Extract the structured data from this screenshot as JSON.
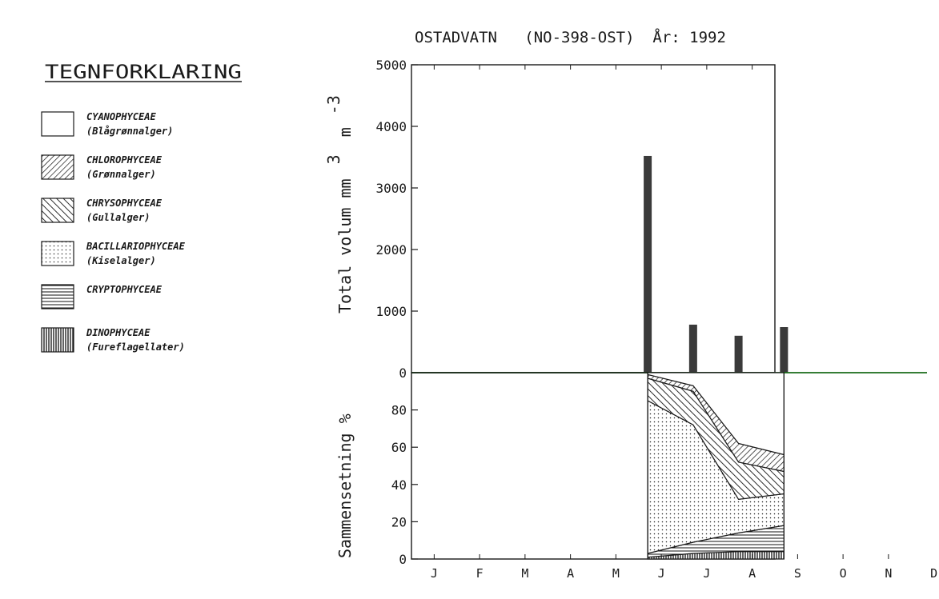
{
  "legend": {
    "heading": "TEGNFORKLARING",
    "items": [
      {
        "line1": "CYANOPHYCEAE",
        "line2": "(Blågrønnalger)",
        "pattern": "cyano"
      },
      {
        "line1": "CHLOROPHYCEAE",
        "line2": "(Grønnalger)",
        "pattern": "chloro"
      },
      {
        "line1": "CHRYSOPHYCEAE",
        "line2": "(Gullalger)",
        "pattern": "chryso"
      },
      {
        "line1": "BACILLARIOPHYCEAE",
        "line2": "(Kiselalger)",
        "pattern": "bacil"
      },
      {
        "line1": "CRYPTOPHYCEAE",
        "line2": "",
        "pattern": "crypto"
      },
      {
        "line1": "DINOPHYCEAE",
        "line2": "(Fureflagellater)",
        "pattern": "dino"
      }
    ]
  },
  "chart_data": {
    "title": "OSTADVATN   (NO-398-OST)  År: 1992",
    "months": [
      "J",
      "F",
      "M",
      "A",
      "M",
      "J",
      "J",
      "A",
      "S",
      "O",
      "N",
      "D"
    ],
    "top": {
      "type": "bar",
      "ylabel": "Total volum mm",
      "ylabel_unit": "3",
      "ylabel_unit2": "m",
      "ylabel_exp": "-3",
      "ylim": [
        0,
        5000
      ],
      "yticks": [
        "0",
        "1000",
        "2000",
        "3000",
        "4000",
        "5000"
      ],
      "yticks_values": [
        0,
        1000,
        2000,
        3000,
        4000,
        5000
      ],
      "bars": [
        {
          "month": 4.7,
          "value": 3520
        },
        {
          "month": 5.7,
          "value": 780
        },
        {
          "month": 6.7,
          "value": 600
        },
        {
          "month": 7.7,
          "value": 740
        }
      ]
    },
    "bottom": {
      "type": "area",
      "ylabel": "Sammensetning %",
      "ylim": [
        0,
        100
      ],
      "yticks": [
        "0",
        "20",
        "40",
        "60",
        "80"
      ],
      "yticks_values": [
        0,
        20,
        40,
        60,
        80
      ],
      "x_months": [
        4.7,
        5.7,
        6.7,
        7.7
      ],
      "cumulative_boundaries": {
        "dino": [
          1,
          3,
          4,
          4
        ],
        "crypto": [
          3,
          9,
          14,
          18
        ],
        "bacil": [
          85,
          72,
          32,
          35
        ],
        "chryso": [
          97,
          90,
          52,
          47
        ],
        "chloro": [
          99,
          93,
          62,
          56
        ],
        "cyano": [
          100,
          100,
          100,
          100
        ]
      }
    }
  }
}
